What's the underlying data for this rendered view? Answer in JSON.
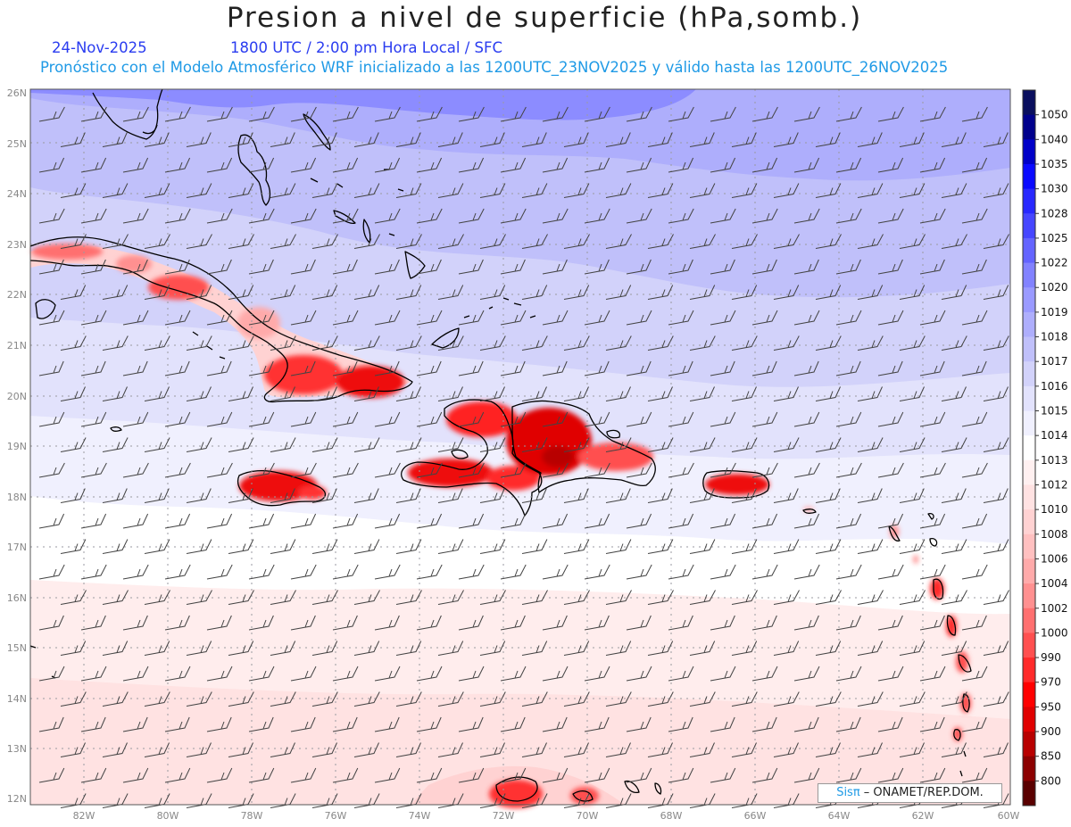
{
  "header": {
    "title": "Presion a nivel de superficie (hPa,somb.)",
    "date": "24-Nov-2025",
    "time": "1800 UTC / 2:00 pm Hora Local / SFC",
    "forecast": "Pronóstico con el Modelo Atmosférico WRF inicializado a las 1200UTC_23NOV2025 y válido hasta las  1200UTC_26NOV2025"
  },
  "map": {
    "lat_labels": [
      "26N",
      "25N",
      "24N",
      "23N",
      "22N",
      "21N",
      "20N",
      "19N",
      "18N",
      "17N",
      "16N",
      "15N",
      "14N",
      "13N",
      "12N"
    ],
    "lon_labels": [
      "82W",
      "80W",
      "78W",
      "76W",
      "74W",
      "72W",
      "70W",
      "68W",
      "66W",
      "64W",
      "62W",
      "60W"
    ]
  },
  "colorbar": {
    "levels": [
      "1050",
      "1040",
      "1035",
      "1030",
      "1028",
      "1025",
      "1022",
      "1020",
      "1019",
      "1018",
      "1017",
      "1016",
      "1015",
      "1014",
      "1013",
      "1012",
      "1010",
      "1008",
      "1006",
      "1004",
      "1002",
      "1000",
      "990",
      "970",
      "950",
      "900",
      "850",
      "800"
    ],
    "colors": [
      "#0a0f5e",
      "#00008c",
      "#0000c8",
      "#0a0aff",
      "#2828ff",
      "#4646ff",
      "#6464ff",
      "#8282ff",
      "#9a9aff",
      "#aeaefc",
      "#c0c0fa",
      "#d2d2fa",
      "#e2e2fc",
      "#f0f0fe",
      "#ffffff",
      "#fff0f0",
      "#ffe2e2",
      "#ffd2d2",
      "#ffc0c0",
      "#ffaaaa",
      "#ff9090",
      "#ff7070",
      "#ff5050",
      "#ff2a2a",
      "#ff0000",
      "#e00000",
      "#b80000",
      "#8c0000",
      "#5a0000"
    ]
  },
  "credit": {
    "brand": "Sisπ",
    "text": " – ONAMET/REP.DOM."
  }
}
